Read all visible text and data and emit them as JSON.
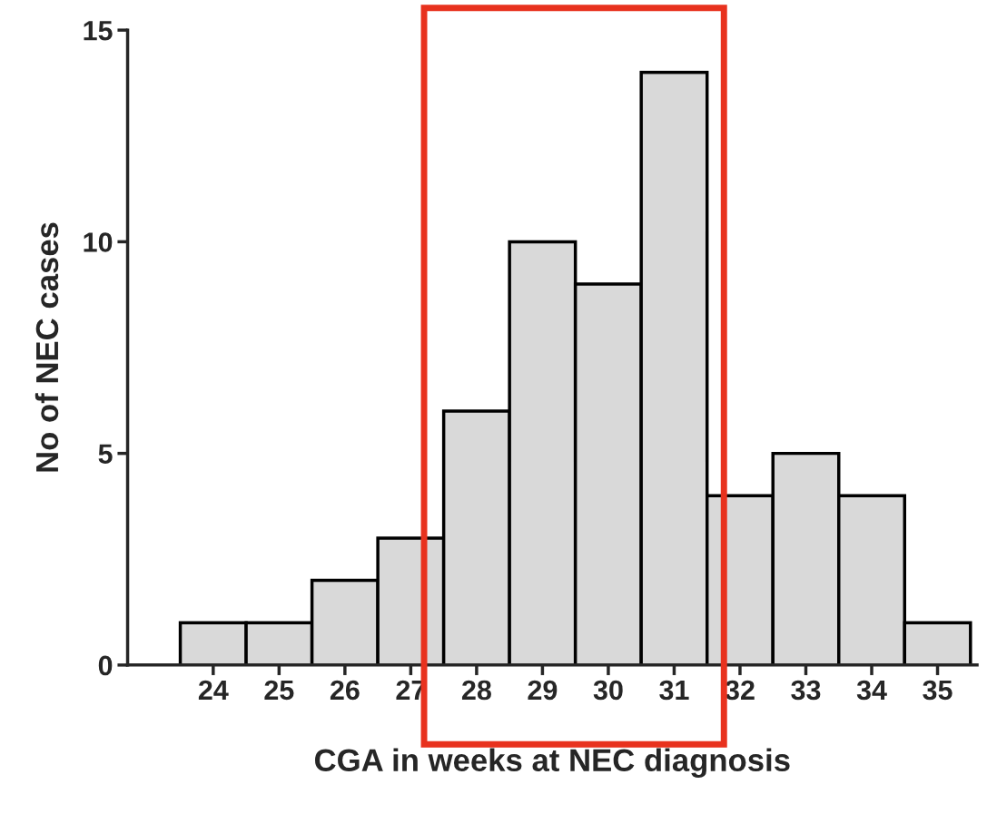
{
  "chart_data": {
    "type": "bar",
    "xlabel": "CGA in weeks at NEC diagnosis",
    "ylabel": "No of NEC cases",
    "categories": [
      "24",
      "25",
      "26",
      "27",
      "28",
      "29",
      "30",
      "31",
      "32",
      "33",
      "34",
      "35"
    ],
    "values": [
      1,
      1,
      2,
      3,
      6,
      10,
      9,
      14,
      4,
      5,
      4,
      1
    ],
    "color": "#d9d9d9",
    "ylim": [
      0,
      15
    ],
    "yticks": [
      0,
      5,
      10,
      15
    ],
    "grid": false,
    "legend": false
  }
}
